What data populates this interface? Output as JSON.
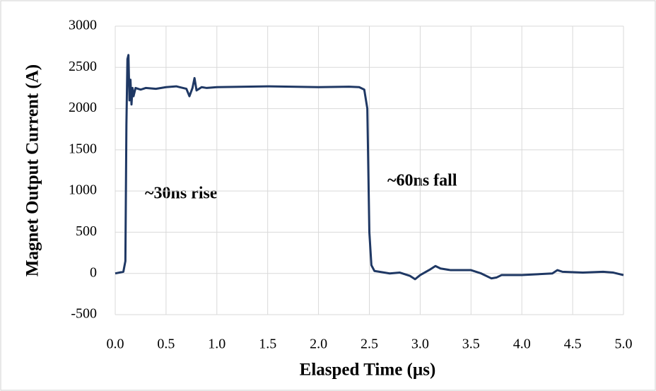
{
  "chart_data": {
    "type": "line",
    "x_label": "Elasped Time  (µs)",
    "y_label": "Magnet Output Current (A)",
    "annotations": [
      "~30ns rise",
      "~60ns fall"
    ],
    "xlim": [
      0,
      5
    ],
    "ylim": [
      -500,
      3000
    ],
    "xticks": [
      {
        "value": 0,
        "label": "0.0"
      },
      0.5,
      {
        "value": 1,
        "label": "1.0"
      },
      1.5,
      {
        "value": 2,
        "label": "2.0"
      },
      2.5,
      {
        "value": 3,
        "label": "3.0"
      },
      3.5,
      {
        "value": 4,
        "label": "4.0"
      },
      4.5,
      {
        "value": 5,
        "label": "5.0"
      }
    ],
    "yticks": [
      -500,
      0,
      500,
      1000,
      1500,
      2000,
      2500,
      3000
    ],
    "grid": true,
    "series": [
      {
        "color": "#1f3864",
        "x": [
          0,
          0.08,
          0.1,
          0.11,
          0.12,
          0.13,
          0.14,
          0.15,
          0.16,
          0.17,
          0.18,
          0.2,
          0.25,
          0.3,
          0.4,
          0.5,
          0.6,
          0.7,
          0.73,
          0.76,
          0.78,
          0.8,
          0.85,
          0.9,
          1.0,
          1.5,
          2.0,
          2.3,
          2.4,
          2.45,
          2.48,
          2.5,
          2.52,
          2.55,
          2.6,
          2.7,
          2.8,
          2.9,
          2.95,
          3.0,
          3.1,
          3.15,
          3.2,
          3.3,
          3.5,
          3.6,
          3.7,
          3.75,
          3.8,
          4.0,
          4.3,
          4.35,
          4.4,
          4.6,
          4.8,
          4.9,
          5.0
        ],
        "values": [
          0,
          20,
          150,
          1800,
          2600,
          2650,
          2100,
          2350,
          2050,
          2250,
          2150,
          2250,
          2230,
          2250,
          2240,
          2260,
          2270,
          2240,
          2150,
          2250,
          2370,
          2220,
          2260,
          2250,
          2260,
          2270,
          2260,
          2265,
          2260,
          2230,
          2000,
          500,
          100,
          30,
          20,
          0,
          10,
          -30,
          -70,
          -20,
          50,
          90,
          60,
          40,
          40,
          0,
          -60,
          -50,
          -20,
          -20,
          0,
          40,
          20,
          10,
          20,
          10,
          -20
        ]
      }
    ]
  }
}
